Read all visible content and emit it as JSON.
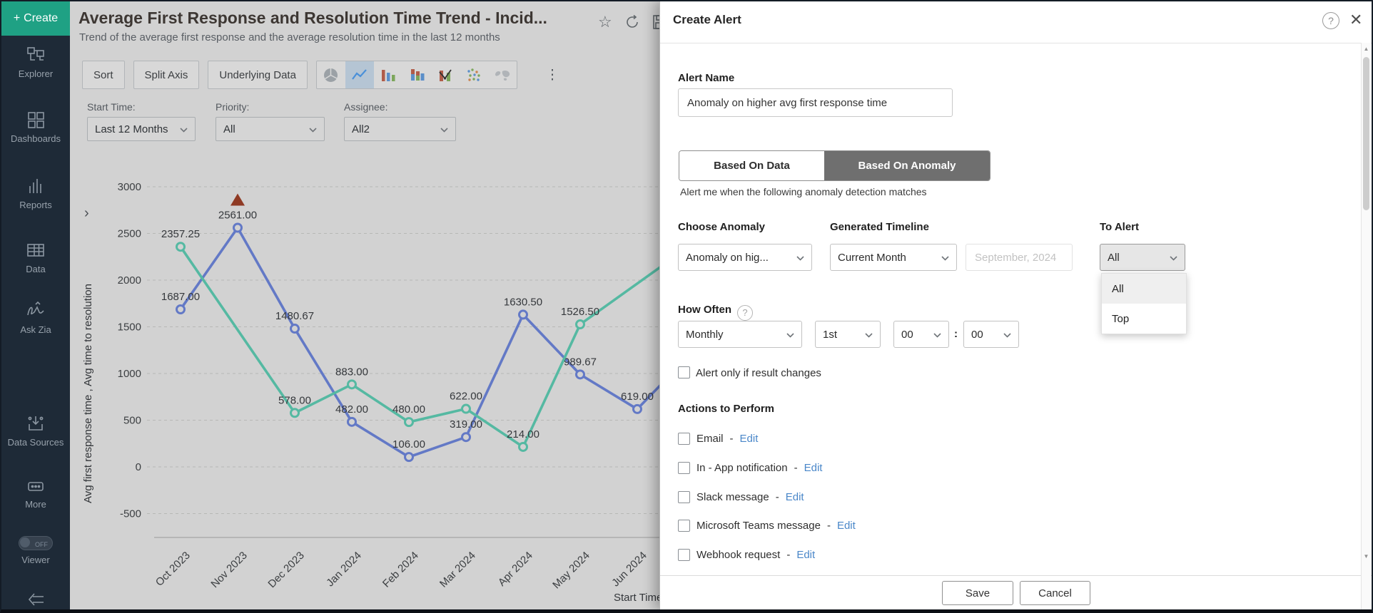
{
  "icons": {
    "plus": "+",
    "more": "⋮",
    "help": "?",
    "close": "✕",
    "star": "☆",
    "colon": ":",
    "up": "▲",
    "down": "▼",
    "expander": "›"
  },
  "sidebar": {
    "create_label": "Create",
    "items": [
      {
        "label": "Explorer"
      },
      {
        "label": "Dashboards"
      },
      {
        "label": "Reports"
      },
      {
        "label": "Data"
      },
      {
        "label": "Ask Zia"
      },
      {
        "label": "Data Sources"
      },
      {
        "label": "More"
      },
      {
        "label": "Viewer",
        "toggle_state": "OFF"
      }
    ]
  },
  "header": {
    "title": "Average First Response and Resolution Time Trend - Incid...",
    "subtitle": "Trend of the average first response and the average resolution time in the last 12 months"
  },
  "toolbar": {
    "buttons": [
      "Sort",
      "Split Axis",
      "Underlying Data"
    ],
    "selected_chart_type": "line"
  },
  "filters": [
    {
      "label": "Start Time:",
      "value": "Last 12 Months"
    },
    {
      "label": "Priority:",
      "value": "All"
    },
    {
      "label": "Assignee:",
      "value": "All2"
    }
  ],
  "chart_data": {
    "type": "line",
    "x": [
      "Oct 2023",
      "Nov 2023",
      "Dec 2023",
      "Jan 2024",
      "Feb 2024",
      "Mar 2024",
      "Apr 2024",
      "May 2024",
      "Jun 2024"
    ],
    "xlabel": "Start Time",
    "ylabel": "Avg first response time , Avg time to resolution",
    "ylim": [
      -500,
      3000
    ],
    "ytick_step": 500,
    "grid": "dashed",
    "legend": "none",
    "series": [
      {
        "name": "Avg first response time",
        "color": "#6379c6",
        "values": [
          1687.0,
          2561.0,
          1480.67,
          482.0,
          106.0,
          319.0,
          1630.5,
          989.67,
          619.0
        ],
        "labels": [
          "1687.00",
          "2561.00",
          "1480.67",
          "482.00",
          "106.00",
          "319.00",
          "1630.50",
          "989.67",
          "619.00"
        ],
        "anomaly_index": 1,
        "anomaly_color": "#8f3a24",
        "offscreen_trail_value": 1250
      },
      {
        "name": "Avg time to resolution",
        "color": "#55b9a2",
        "values": [
          2357.25,
          null,
          578.0,
          883.0,
          480.0,
          622.0,
          214.0,
          1526.5,
          null
        ],
        "labels": [
          "2357.25",
          null,
          "578.00",
          "883.00",
          "480.00",
          "622.00",
          "214.00",
          "1526.50",
          null
        ],
        "offscreen_trail_value": 2400
      }
    ]
  },
  "alert_panel": {
    "title": "Create Alert",
    "alert_name_label": "Alert Name",
    "alert_name_value": "Anomaly on higher avg first response time",
    "tabs": [
      {
        "label": "Based On Data",
        "active": false
      },
      {
        "label": "Based On Anomaly",
        "active": true
      }
    ],
    "tab_caption": "Alert me when the following anomaly detection matches",
    "choose_anomaly": {
      "label": "Choose Anomaly",
      "value": "Anomaly on hig..."
    },
    "generated_timeline": {
      "label": "Generated Timeline",
      "value": "Current Month",
      "date_value": "September, 2024"
    },
    "to_alert": {
      "label": "To Alert",
      "value": "All",
      "open": true,
      "options": [
        "All",
        "Top"
      ],
      "highlighted_option": "All"
    },
    "how_often": {
      "label": "How Often",
      "frequency": "Monthly",
      "day": "1st",
      "hour": "00",
      "minute": "00",
      "separator": ":"
    },
    "result_changes": {
      "label": "Alert only if result changes",
      "checked": false
    },
    "actions": {
      "label": "Actions to Perform",
      "separator": "-",
      "edit_label": "Edit",
      "items": [
        {
          "label": "Email",
          "checked": false
        },
        {
          "label": "In - App notification",
          "checked": false
        },
        {
          "label": "Slack message",
          "checked": false
        },
        {
          "label": "Microsoft Teams message",
          "checked": false
        },
        {
          "label": "Webhook request",
          "checked": false
        }
      ]
    },
    "footer": {
      "save": "Save",
      "cancel": "Cancel"
    }
  }
}
